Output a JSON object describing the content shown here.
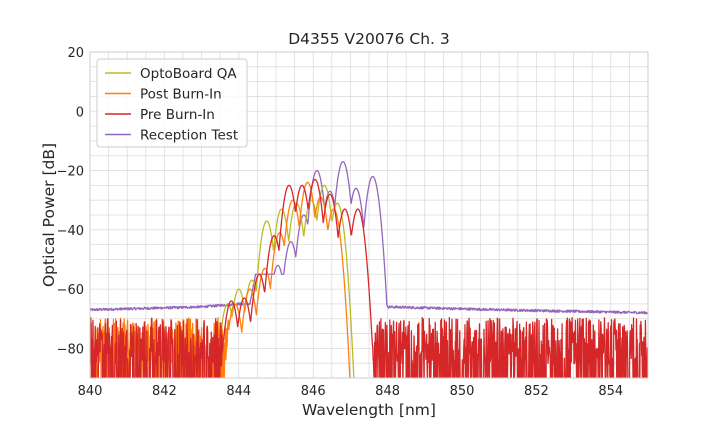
{
  "chart_data": {
    "type": "line",
    "title": "D4355 V20076 Ch. 3",
    "xlabel": "Wavelength [nm]",
    "ylabel": "Optical Power [dB]",
    "xlim": [
      840,
      855
    ],
    "ylim": [
      -90,
      20
    ],
    "xticks": [
      840,
      842,
      844,
      846,
      848,
      850,
      852,
      854
    ],
    "yticks": [
      20,
      0,
      -20,
      -40,
      -60,
      -80
    ],
    "grid": true,
    "legend_position": "top-left",
    "series": [
      {
        "name": "OptoBoard QA",
        "color": "#bcbd22",
        "noise_floor": {
          "from": 843.3,
          "to": 846.9,
          "level": -80
        },
        "peaks": [
          {
            "x": 843.7,
            "y": -65
          },
          {
            "x": 844.0,
            "y": -60
          },
          {
            "x": 844.35,
            "y": -57
          },
          {
            "x": 844.75,
            "y": -37
          },
          {
            "x": 845.15,
            "y": -33
          },
          {
            "x": 845.55,
            "y": -31
          },
          {
            "x": 845.95,
            "y": -30
          },
          {
            "x": 846.3,
            "y": -25
          },
          {
            "x": 846.65,
            "y": -31
          }
        ]
      },
      {
        "name": "Post Burn-In",
        "color": "#ff7f0e",
        "noise_floor": {
          "from": 840.0,
          "to": 846.7,
          "level": -80
        },
        "peaks": [
          {
            "x": 843.9,
            "y": -65
          },
          {
            "x": 844.3,
            "y": -60
          },
          {
            "x": 844.7,
            "y": -53
          },
          {
            "x": 845.1,
            "y": -41
          },
          {
            "x": 845.45,
            "y": -30
          },
          {
            "x": 845.85,
            "y": -24
          },
          {
            "x": 846.2,
            "y": -29
          },
          {
            "x": 846.55,
            "y": -33
          }
        ]
      },
      {
        "name": "Pre Burn-In",
        "color": "#d62728",
        "noise_floor": {
          "from": 840.0,
          "to": 855.0,
          "level": -80
        },
        "peaks": [
          {
            "x": 843.8,
            "y": -64
          },
          {
            "x": 844.15,
            "y": -63
          },
          {
            "x": 844.55,
            "y": -55
          },
          {
            "x": 844.95,
            "y": -42
          },
          {
            "x": 845.35,
            "y": -25
          },
          {
            "x": 845.7,
            "y": -25
          },
          {
            "x": 846.05,
            "y": -23
          },
          {
            "x": 846.45,
            "y": -28
          },
          {
            "x": 846.85,
            "y": -33
          },
          {
            "x": 847.2,
            "y": -33
          }
        ]
      },
      {
        "name": "Reception Test",
        "color": "#9467bd",
        "baseline": [
          {
            "x": 840,
            "y": -67
          },
          {
            "x": 843,
            "y": -66
          },
          {
            "x": 844,
            "y": -65
          },
          {
            "x": 848,
            "y": -66
          },
          {
            "x": 851,
            "y": -67
          },
          {
            "x": 855,
            "y": -68
          }
        ],
        "plateau": {
          "from": 844.3,
          "to": 847.7,
          "level": -55
        },
        "peaks": [
          {
            "x": 844.7,
            "y": -63
          },
          {
            "x": 845.05,
            "y": -52
          },
          {
            "x": 845.4,
            "y": -44
          },
          {
            "x": 845.75,
            "y": -35
          },
          {
            "x": 846.1,
            "y": -20
          },
          {
            "x": 846.45,
            "y": -27
          },
          {
            "x": 846.8,
            "y": -17
          },
          {
            "x": 847.15,
            "y": -26
          },
          {
            "x": 847.6,
            "y": -22
          }
        ]
      }
    ]
  }
}
